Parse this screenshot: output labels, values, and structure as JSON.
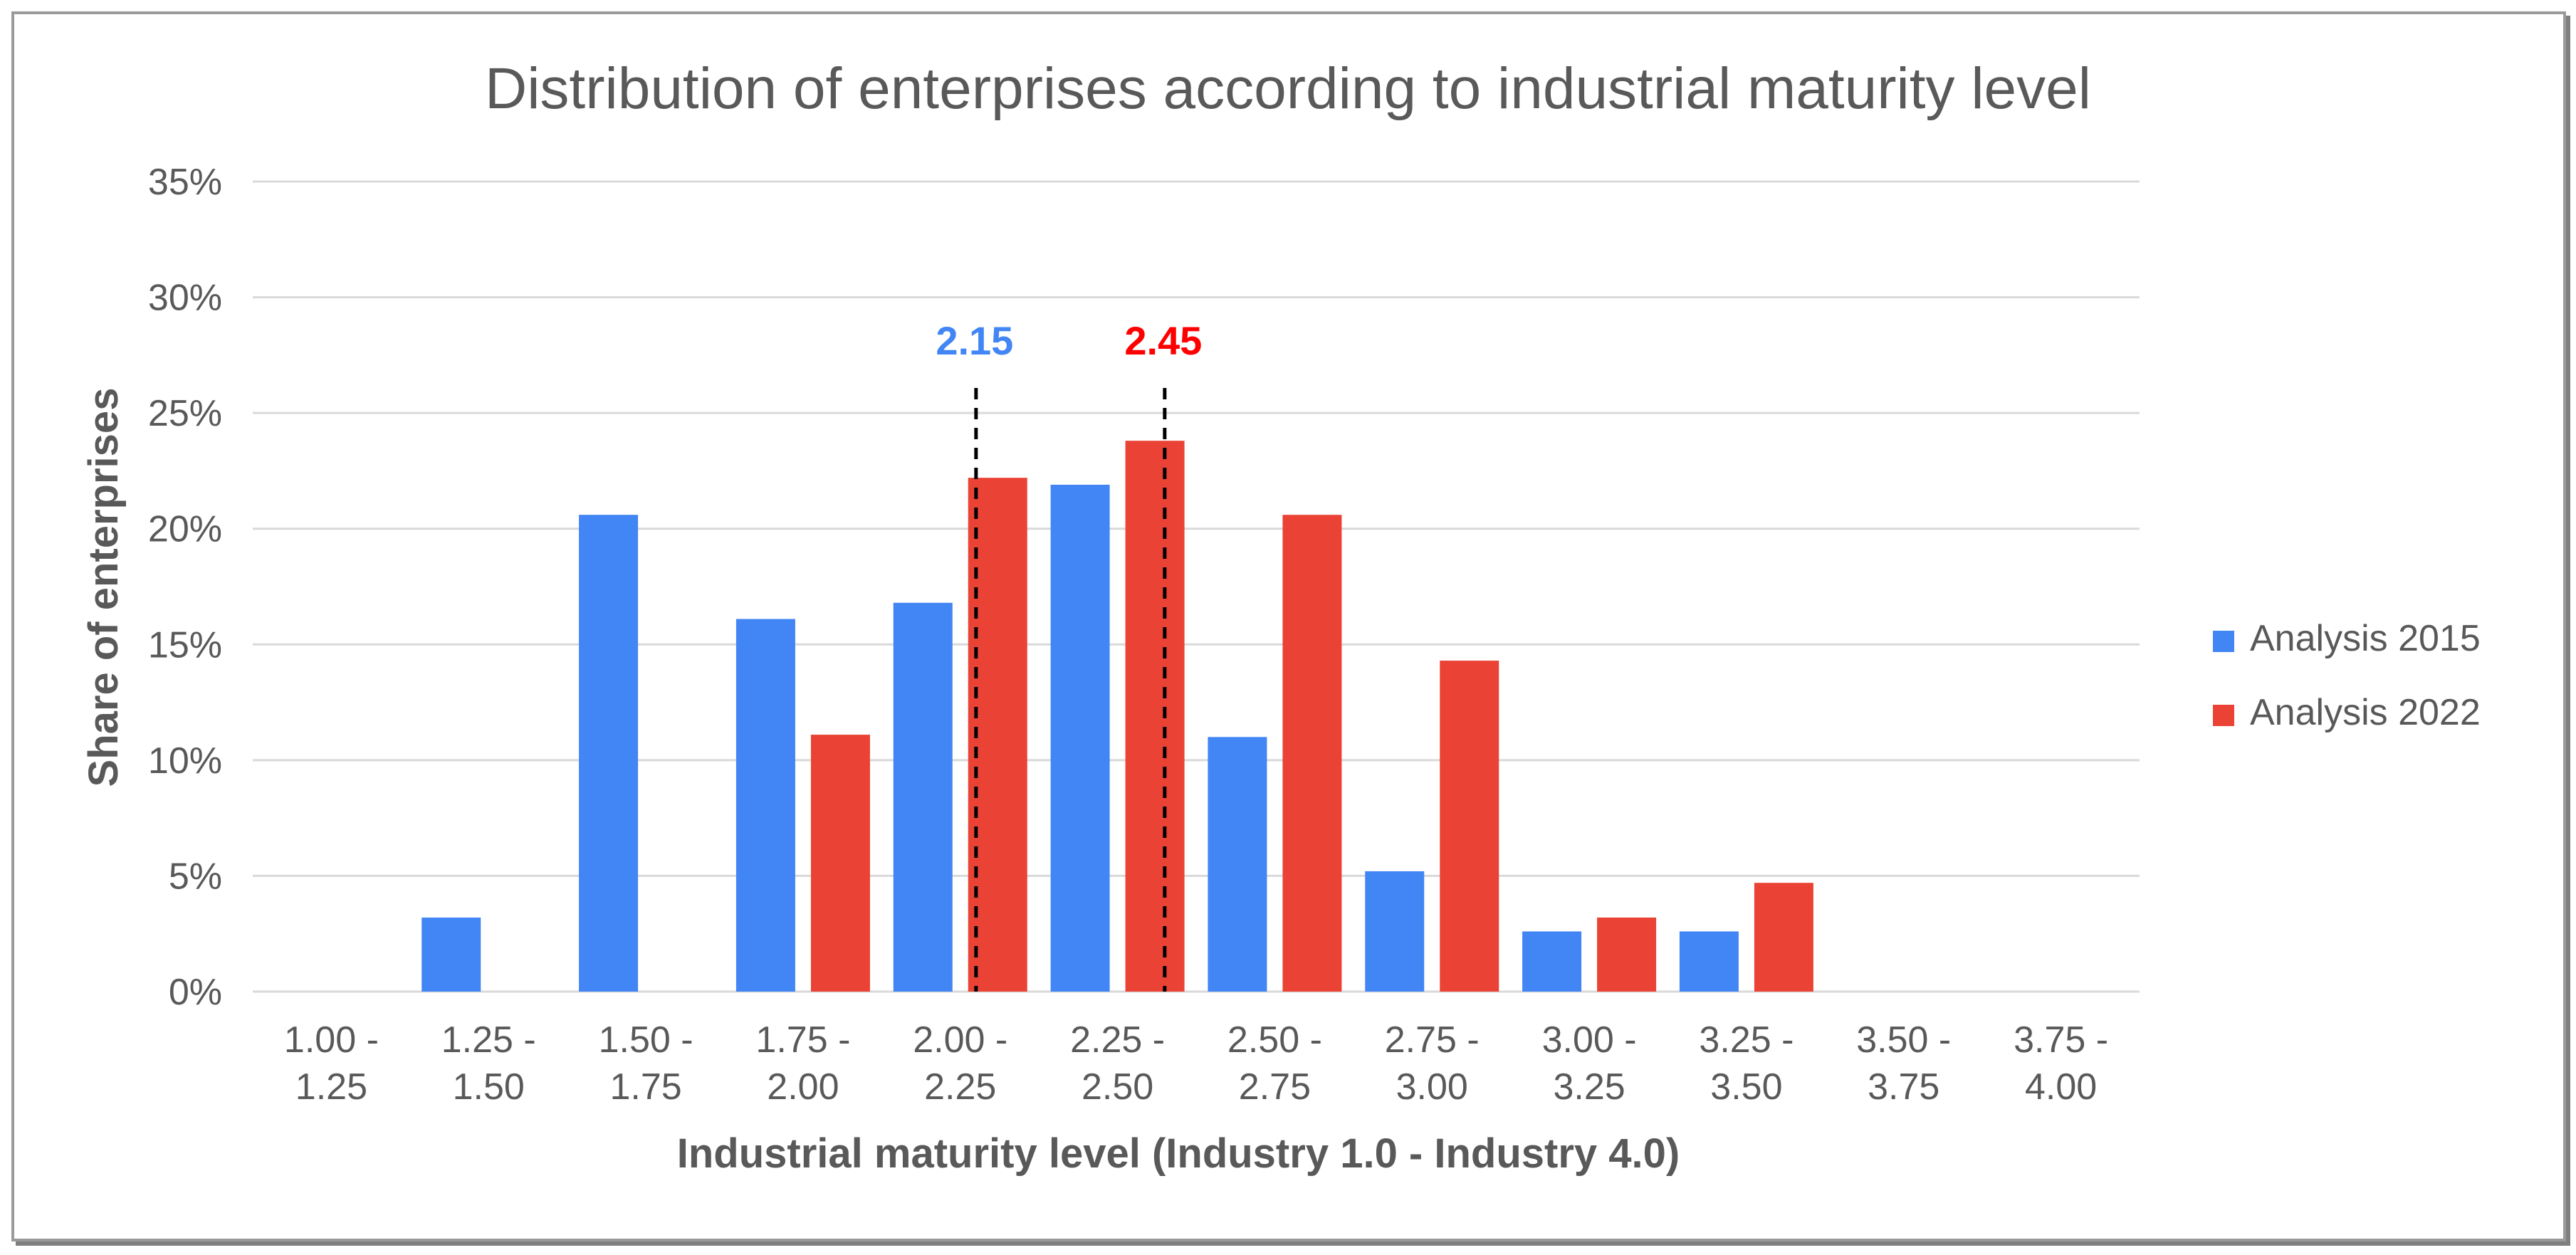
{
  "chart_data": {
    "type": "bar",
    "title": "Distribution of enterprises according to industrial maturity level",
    "xlabel": "Industrial maturity level (Industry 1.0 - Industry 4.0)",
    "ylabel": "Share of enterprises",
    "ylim": [
      0,
      35
    ],
    "yticks": [
      "0%",
      "5%",
      "10%",
      "15%",
      "20%",
      "25%",
      "30%",
      "35%"
    ],
    "grid": true,
    "legend_position": "right",
    "categories": [
      [
        "1.00 -",
        "1.25"
      ],
      [
        "1.25 -",
        "1.50"
      ],
      [
        "1.50 -",
        "1.75"
      ],
      [
        "1.75 -",
        "2.00"
      ],
      [
        "2.00 -",
        "2.25"
      ],
      [
        "2.25 -",
        "2.50"
      ],
      [
        "2.50 -",
        "2.75"
      ],
      [
        "2.75 -",
        "3.00"
      ],
      [
        "3.00 -",
        "3.25"
      ],
      [
        "3.25 -",
        "3.50"
      ],
      [
        "3.50 -",
        "3.75"
      ],
      [
        "3.75 -",
        "4.00"
      ]
    ],
    "series": [
      {
        "name": "Analysis 2015",
        "color": "#4285F4",
        "values": [
          0,
          3.2,
          20.6,
          16.1,
          16.8,
          21.9,
          11.0,
          5.2,
          2.6,
          2.6,
          0,
          0
        ]
      },
      {
        "name": "Analysis 2022",
        "color": "#EA4335",
        "values": [
          0,
          0,
          0,
          11.1,
          22.2,
          23.8,
          20.6,
          14.3,
          3.2,
          4.7,
          0,
          0
        ]
      }
    ],
    "annotations": [
      {
        "label": "2.15",
        "x": 2.15,
        "color": "#4285F4"
      },
      {
        "label": "2.45",
        "x": 2.45,
        "color": "#FF0000"
      }
    ],
    "x_range": [
      1.0,
      4.0
    ]
  }
}
